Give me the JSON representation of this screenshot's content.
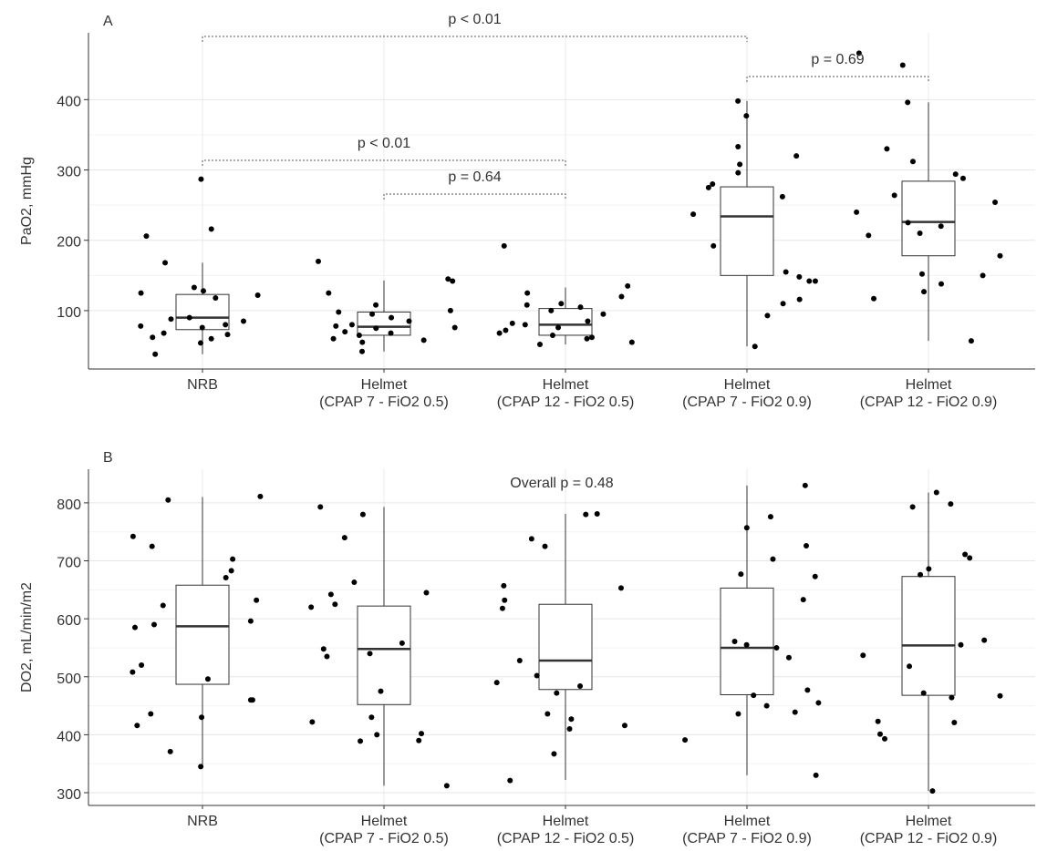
{
  "chart_data": [
    {
      "type": "box",
      "title": "A",
      "ylabel": "PaO2, mmHg",
      "categories": [
        "NRB",
        "Helmet\n(CPAP 7 - FiO2 0.5)",
        "Helmet\n(CPAP 12 - FiO2 0.5)",
        "Helmet\n(CPAP 7 - FiO2 0.9)",
        "Helmet\n(CPAP 12 - FiO2 0.9)"
      ],
      "ylim": [
        17,
        495
      ],
      "yticks": [
        100,
        200,
        300,
        400
      ],
      "grid": true,
      "boxes": [
        {
          "whislo": 38,
          "q1": 73,
          "med": 90,
          "q3": 123,
          "whishi": 168,
          "points": [
            287,
            216,
            206,
            168,
            133,
            128,
            125,
            122,
            118,
            90,
            88,
            85,
            80,
            78,
            76,
            68,
            66,
            62,
            60,
            54,
            38
          ]
        },
        {
          "whislo": 42,
          "q1": 65,
          "med": 77,
          "q3": 98,
          "whishi": 143,
          "points": [
            170,
            145,
            142,
            125,
            108,
            100,
            98,
            95,
            90,
            85,
            80,
            78,
            76,
            75,
            70,
            68,
            65,
            60,
            58,
            55,
            42
          ]
        },
        {
          "whislo": 52,
          "q1": 65,
          "med": 80,
          "q3": 103,
          "whishi": 133,
          "points": [
            192,
            135,
            125,
            120,
            110,
            108,
            105,
            100,
            95,
            85,
            82,
            80,
            76,
            72,
            68,
            65,
            62,
            60,
            55,
            52
          ]
        },
        {
          "whislo": 49,
          "q1": 150,
          "med": 234,
          "q3": 276,
          "whishi": 398,
          "points": [
            398,
            377,
            333,
            320,
            308,
            296,
            280,
            275,
            262,
            237,
            192,
            155,
            148,
            142,
            142,
            116,
            110,
            93,
            49
          ]
        },
        {
          "whislo": 57,
          "q1": 178,
          "med": 226,
          "q3": 284,
          "whishi": 396,
          "points": [
            466,
            449,
            396,
            330,
            312,
            294,
            288,
            264,
            254,
            240,
            225,
            220,
            210,
            207,
            178,
            152,
            150,
            138,
            127,
            117,
            57
          ]
        }
      ],
      "annotations": [
        {
          "text": "p < 0.01",
          "from": "NRB",
          "to": "Helmet\n(CPAP 7 - FiO2 0.9)"
        },
        {
          "text": "p = 0.69",
          "from": "Helmet\n(CPAP 7 - FiO2 0.9)",
          "to": "Helmet\n(CPAP 12 - FiO2 0.9)"
        },
        {
          "text": "p < 0.01",
          "from": "NRB",
          "to": "Helmet\n(CPAP 12 - FiO2 0.5)"
        },
        {
          "text": "p = 0.64",
          "from": "Helmet\n(CPAP 7 - FiO2 0.5)",
          "to": "Helmet\n(CPAP 12 - FiO2 0.5)"
        }
      ]
    },
    {
      "type": "box",
      "title": "B",
      "ylabel": "DO2, mL/min/m2",
      "categories": [
        "NRB",
        "Helmet\n(CPAP 7 - FiO2 0.5)",
        "Helmet\n(CPAP 12 - FiO2 0.5)",
        "Helmet\n(CPAP 7 - FiO2 0.9)",
        "Helmet\n(CPAP 12 - FiO2 0.9)"
      ],
      "ylim": [
        278,
        858
      ],
      "yticks": [
        300,
        400,
        500,
        600,
        700,
        800
      ],
      "grid": true,
      "boxes": [
        {
          "whislo": 345,
          "q1": 487,
          "med": 587,
          "q3": 658,
          "whishi": 810,
          "points": [
            811,
            805,
            742,
            725,
            703,
            683,
            671,
            632,
            623,
            596,
            590,
            585,
            520,
            508,
            496,
            460,
            460,
            436,
            430,
            416,
            371,
            345
          ]
        },
        {
          "whislo": 312,
          "q1": 452,
          "med": 548,
          "q3": 622,
          "whishi": 793,
          "points": [
            793,
            780,
            740,
            663,
            645,
            642,
            625,
            620,
            558,
            548,
            540,
            535,
            475,
            430,
            422,
            402,
            400,
            390,
            389,
            312
          ]
        },
        {
          "whislo": 322,
          "q1": 478,
          "med": 528,
          "q3": 625,
          "whishi": 781,
          "points": [
            781,
            780,
            738,
            725,
            657,
            653,
            632,
            618,
            528,
            502,
            490,
            484,
            472,
            436,
            427,
            416,
            410,
            367,
            321
          ]
        },
        {
          "whislo": 330,
          "q1": 469,
          "med": 550,
          "q3": 653,
          "whishi": 830,
          "points": [
            830,
            776,
            757,
            726,
            703,
            677,
            673,
            633,
            561,
            555,
            550,
            533,
            477,
            468,
            455,
            450,
            439,
            436,
            391,
            330
          ]
        },
        {
          "whislo": 303,
          "q1": 468,
          "med": 554,
          "q3": 673,
          "whishi": 818,
          "points": [
            818,
            798,
            793,
            711,
            705,
            686,
            676,
            563,
            555,
            537,
            518,
            472,
            467,
            464,
            423,
            421,
            401,
            393,
            303
          ]
        }
      ],
      "annotations": [
        {
          "text": "Overall p = 0.48"
        }
      ]
    }
  ]
}
